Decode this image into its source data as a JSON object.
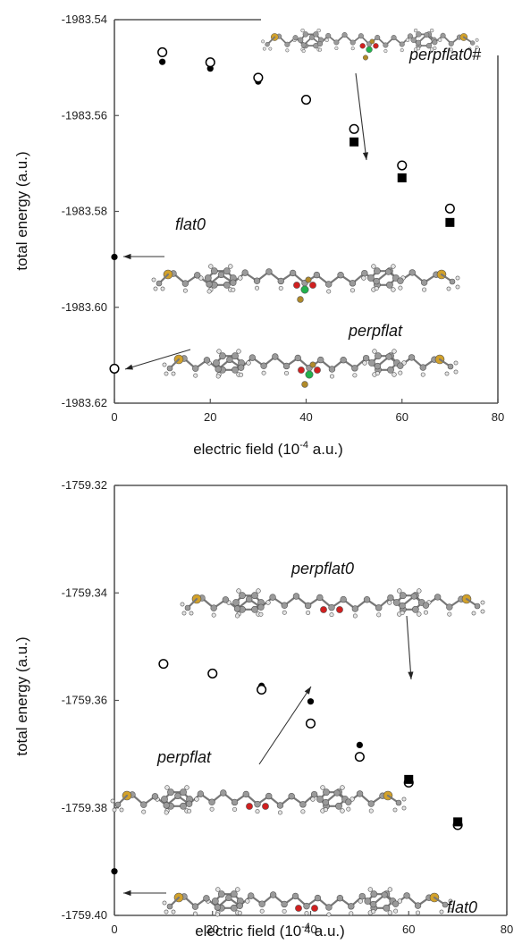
{
  "chart_data": [
    {
      "type": "scatter",
      "xlabel": "electric field  (10",
      "xlabel_sup": "-4",
      "xlabel_end": " a.u.)",
      "ylabel": "total energy (a.u.)",
      "xlim": [
        0,
        80
      ],
      "ylim": [
        -1983.62,
        -1983.54
      ],
      "xticks": [
        "0",
        "20",
        "40",
        "60",
        "80"
      ],
      "yticks": [
        "-1983.54",
        "-1983.56",
        "-1983.58",
        "-1983.60",
        "-1983.62"
      ],
      "grid": false,
      "series": [
        {
          "marker": "filled-circle",
          "points": [
            [
              0,
              -1983.5895
            ],
            [
              10,
              -1983.5488
            ],
            [
              20,
              -1983.5502
            ],
            [
              30,
              -1983.5529
            ],
            [
              40,
              -1983.5568
            ]
          ]
        },
        {
          "marker": "open-circle",
          "points": [
            [
              0,
              -1983.6128
            ],
            [
              10,
              -1983.5468
            ],
            [
              20,
              -1983.5489
            ],
            [
              30,
              -1983.5521
            ],
            [
              40,
              -1983.5567
            ],
            [
              50,
              -1983.5628
            ],
            [
              60,
              -1983.5704
            ],
            [
              70,
              -1983.5794
            ]
          ]
        },
        {
          "marker": "filled-square",
          "points": [
            [
              50,
              -1983.5655
            ],
            [
              60,
              -1983.573
            ],
            [
              70,
              -1983.5823
            ]
          ]
        }
      ],
      "annotations": [
        {
          "text": "perpflat0#"
        },
        {
          "text": "flat0"
        },
        {
          "text": "perpflat"
        }
      ]
    },
    {
      "type": "scatter",
      "xlabel": "electric field  (10",
      "xlabel_sup": "-4",
      "xlabel_end": " a.u.)",
      "ylabel": "total energy (a.u.)",
      "xlim": [
        0,
        80
      ],
      "ylim": [
        -1759.4,
        -1759.32
      ],
      "xticks": [
        "0",
        "20",
        "40",
        "60",
        "80"
      ],
      "yticks": [
        "-1759.32",
        "-1759.34",
        "-1759.36",
        "-1759.38",
        "-1759.40"
      ],
      "grid": false,
      "series": [
        {
          "marker": "filled-circle",
          "points": [
            [
              0,
              -1759.3918
            ],
            [
              10,
              -1759.353
            ],
            [
              20,
              -1759.3547
            ],
            [
              30,
              -1759.3573
            ],
            [
              40,
              -1759.3602
            ],
            [
              50,
              -1759.3683
            ]
          ]
        },
        {
          "marker": "open-circle",
          "points": [
            [
              10,
              -1759.3532
            ],
            [
              20,
              -1759.355
            ],
            [
              30,
              -1759.358
            ],
            [
              40,
              -1759.3643
            ],
            [
              50,
              -1759.3705
            ],
            [
              60,
              -1759.3753
            ],
            [
              70,
              -1759.3832
            ]
          ]
        },
        {
          "marker": "filled-square",
          "points": [
            [
              60,
              -1759.3747
            ],
            [
              70,
              -1759.3826
            ]
          ]
        }
      ],
      "annotations": [
        {
          "text": "perpflat0"
        },
        {
          "text": "perpflat"
        },
        {
          "text": "flat0"
        }
      ]
    }
  ],
  "colors": {
    "axis": "#555555",
    "marker": "#000000",
    "carbon": "#9a9a9a",
    "hydrogen": "#e4e4e4",
    "sulfur": "#d2a12a",
    "oxygen": "#d02020",
    "boron": "#22b14c",
    "fluorine": "#b08a2a"
  }
}
